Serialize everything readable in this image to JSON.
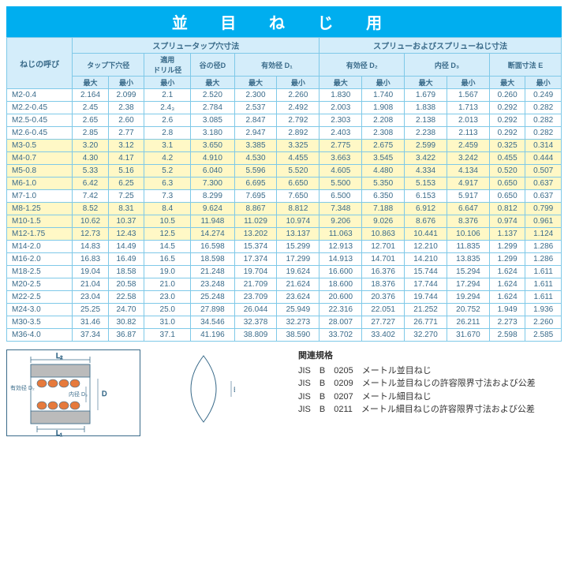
{
  "title": "並 目 ね じ 用",
  "header_groups": {
    "left": "スプリュータップ穴寸法",
    "right": "スプリューおよびスプリューねじ寸法"
  },
  "col1": "ねじの呼び",
  "sub_headers": {
    "tap_hole": "タップ下穴径",
    "drill": "適用\nドリル径",
    "root_d": "谷の径D",
    "eff_d1": "有効径 D₁",
    "eff_d2": "有効径 D₂",
    "inner_d3": "内径 D₃",
    "sec_e": "断面寸法 E"
  },
  "mm": {
    "max": "最大",
    "min": "最小"
  },
  "rows": [
    {
      "n": "M2-0.4",
      "hl": false,
      "v": [
        "2.164",
        "2.099",
        "2.1",
        "2.520",
        "2.300",
        "2.260",
        "1.830",
        "1.740",
        "1.679",
        "1.567",
        "0.260",
        "0.249"
      ]
    },
    {
      "n": "M2.2-0.45",
      "hl": false,
      "v": [
        "2.45",
        "2.38",
        "2.4₃",
        "2.784",
        "2.537",
        "2.492",
        "2.003",
        "1.908",
        "1.838",
        "1.713",
        "0.292",
        "0.282"
      ]
    },
    {
      "n": "M2.5-0.45",
      "hl": false,
      "v": [
        "2.65",
        "2.60",
        "2.6",
        "3.085",
        "2.847",
        "2.792",
        "2.303",
        "2.208",
        "2.138",
        "2.013",
        "0.292",
        "0.282"
      ]
    },
    {
      "n": "M2.6-0.45",
      "hl": false,
      "v": [
        "2.85",
        "2.77",
        "2.8",
        "3.180",
        "2.947",
        "2.892",
        "2.403",
        "2.308",
        "2.238",
        "2.113",
        "0.292",
        "0.282"
      ]
    },
    {
      "n": "M3-0.5",
      "hl": true,
      "v": [
        "3.20",
        "3.12",
        "3.1",
        "3.650",
        "3.385",
        "3.325",
        "2.775",
        "2.675",
        "2.599",
        "2.459",
        "0.325",
        "0.314"
      ]
    },
    {
      "n": "M4-0.7",
      "hl": true,
      "v": [
        "4.30",
        "4.17",
        "4.2",
        "4.910",
        "4.530",
        "4.455",
        "3.663",
        "3.545",
        "3.422",
        "3.242",
        "0.455",
        "0.444"
      ]
    },
    {
      "n": "M5-0.8",
      "hl": true,
      "v": [
        "5.33",
        "5.16",
        "5.2",
        "6.040",
        "5.596",
        "5.520",
        "4.605",
        "4.480",
        "4.334",
        "4.134",
        "0.520",
        "0.507"
      ]
    },
    {
      "n": "M6-1.0",
      "hl": true,
      "v": [
        "6.42",
        "6.25",
        "6.3",
        "7.300",
        "6.695",
        "6.650",
        "5.500",
        "5.350",
        "5.153",
        "4.917",
        "0.650",
        "0.637"
      ]
    },
    {
      "n": "M7-1.0",
      "hl": false,
      "v": [
        "7.42",
        "7.25",
        "7.3",
        "8.299",
        "7.695",
        "7.650",
        "6.500",
        "6.350",
        "6.153",
        "5.917",
        "0.650",
        "0.637"
      ]
    },
    {
      "n": "M8-1.25",
      "hl": true,
      "v": [
        "8.52",
        "8.31",
        "8.4",
        "9.624",
        "8.867",
        "8.812",
        "7.348",
        "7.188",
        "6.912",
        "6.647",
        "0.812",
        "0.799"
      ]
    },
    {
      "n": "M10-1.5",
      "hl": true,
      "v": [
        "10.62",
        "10.37",
        "10.5",
        "11.948",
        "11.029",
        "10.974",
        "9.206",
        "9.026",
        "8.676",
        "8.376",
        "0.974",
        "0.961"
      ]
    },
    {
      "n": "M12-1.75",
      "hl": true,
      "v": [
        "12.73",
        "12.43",
        "12.5",
        "14.274",
        "13.202",
        "13.137",
        "11.063",
        "10.863",
        "10.441",
        "10.106",
        "1.137",
        "1.124"
      ]
    },
    {
      "n": "M14-2.0",
      "hl": false,
      "v": [
        "14.83",
        "14.49",
        "14.5",
        "16.598",
        "15.374",
        "15.299",
        "12.913",
        "12.701",
        "12.210",
        "11.835",
        "1.299",
        "1.286"
      ]
    },
    {
      "n": "M16-2.0",
      "hl": false,
      "v": [
        "16.83",
        "16.49",
        "16.5",
        "18.598",
        "17.374",
        "17.299",
        "14.913",
        "14.701",
        "14.210",
        "13.835",
        "1.299",
        "1.286"
      ]
    },
    {
      "n": "M18-2.5",
      "hl": false,
      "v": [
        "19.04",
        "18.58",
        "19.0",
        "21.248",
        "19.704",
        "19.624",
        "16.600",
        "16.376",
        "15.744",
        "15.294",
        "1.624",
        "1.611"
      ]
    },
    {
      "n": "M20-2.5",
      "hl": false,
      "v": [
        "21.04",
        "20.58",
        "21.0",
        "23.248",
        "21.709",
        "21.624",
        "18.600",
        "18.376",
        "17.744",
        "17.294",
        "1.624",
        "1.611"
      ]
    },
    {
      "n": "M22-2.5",
      "hl": false,
      "v": [
        "23.04",
        "22.58",
        "23.0",
        "25.248",
        "23.709",
        "23.624",
        "20.600",
        "20.376",
        "19.744",
        "19.294",
        "1.624",
        "1.611"
      ]
    },
    {
      "n": "M24-3.0",
      "hl": false,
      "v": [
        "25.25",
        "24.70",
        "25.0",
        "27.898",
        "26.044",
        "25.949",
        "22.316",
        "22.051",
        "21.252",
        "20.752",
        "1.949",
        "1.936"
      ]
    },
    {
      "n": "M30-3.5",
      "hl": false,
      "v": [
        "31.46",
        "30.82",
        "31.0",
        "34.546",
        "32.378",
        "32.273",
        "28.007",
        "27.727",
        "26.771",
        "26.211",
        "2.273",
        "2.260"
      ]
    },
    {
      "n": "M36-4.0",
      "hl": false,
      "v": [
        "37.34",
        "36.87",
        "37.1",
        "41.196",
        "38.809",
        "38.590",
        "33.702",
        "33.402",
        "32.270",
        "31.670",
        "2.598",
        "2.585"
      ]
    }
  ],
  "standards": {
    "title": "関連規格",
    "lines": [
      "JIS　B　0205　メートル並目ねじ",
      "JIS　B　0209　メートル並目ねじの許容限界寸法および公差",
      "JIS　B　0207　メートル細目ねじ",
      "JIS　B　0211　メートル細目ねじの許容限界寸法および公差"
    ]
  },
  "diagram_labels": {
    "l2": "L₂",
    "l1": "L₁",
    "d": "D",
    "d3": "内径\nD₃",
    "d2": "有効径\nD₂",
    "e": "E"
  },
  "colors": {
    "header_bg": "#d4edfa",
    "title_bg": "#00aeef",
    "border": "#7fc9e8",
    "text": "#3a6b8a",
    "highlight": "#fff8c6"
  }
}
